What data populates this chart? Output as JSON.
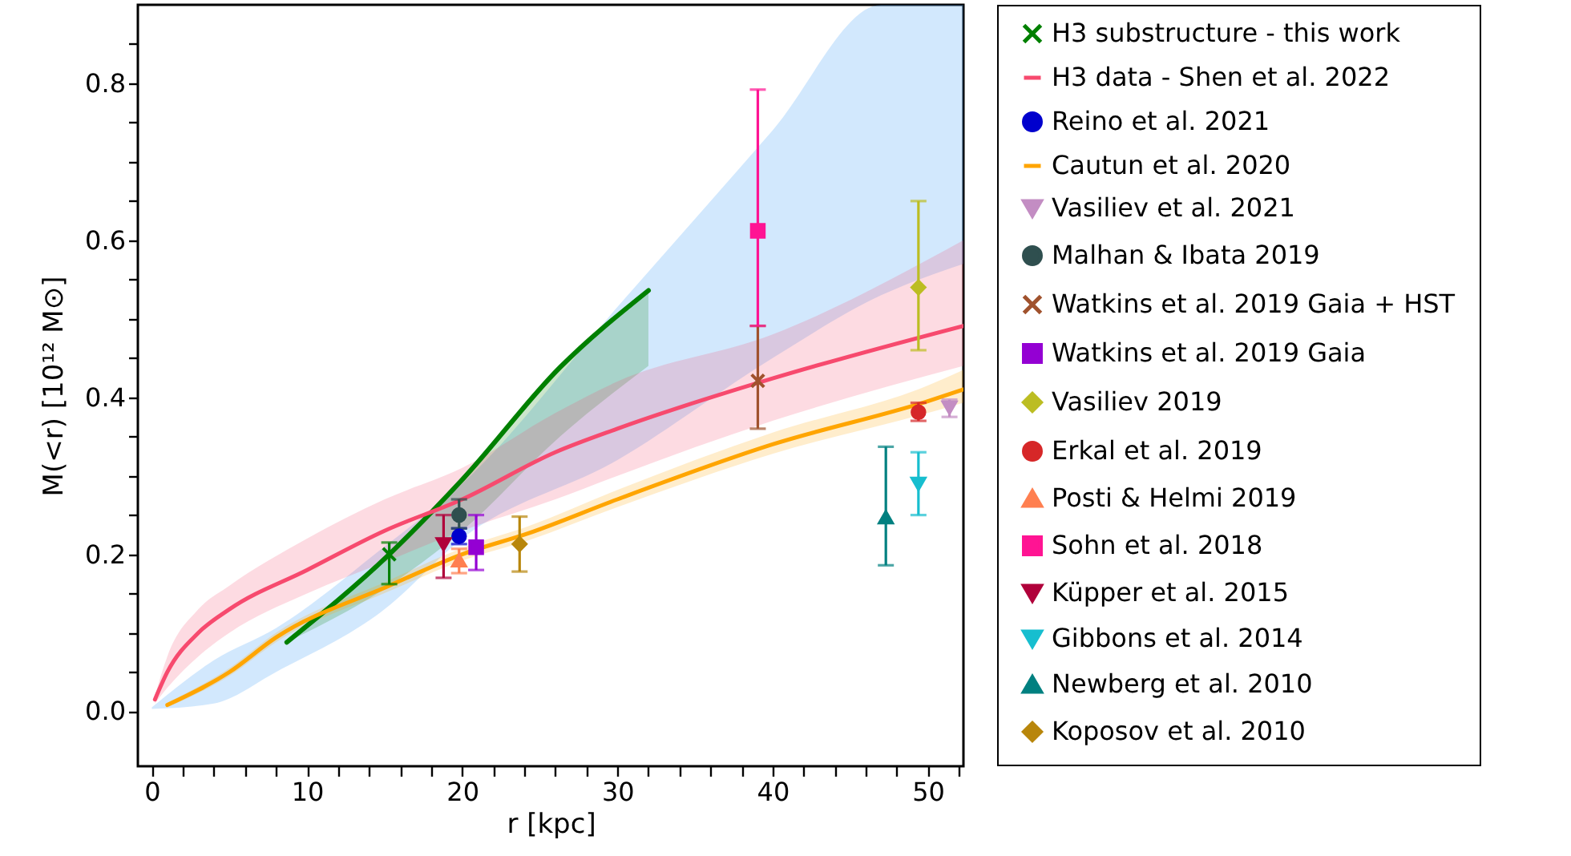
{
  "chart_data": {
    "type": "line",
    "xlabel": "r [kpc]",
    "ylabel": "M(<r) [10¹² M⊙]",
    "xlim": [
      -0.9,
      52.3
    ],
    "ylim": [
      -0.07,
      0.9
    ],
    "xticks": [
      0,
      {
        "value": 2,
        "label": null
      },
      {
        "value": 4,
        "label": null
      },
      {
        "value": 6,
        "label": null
      },
      {
        "value": 8,
        "label": null
      },
      10,
      {
        "value": 12,
        "label": null
      },
      {
        "value": 14,
        "label": null
      },
      {
        "value": 16,
        "label": null
      },
      {
        "value": 18,
        "label": null
      },
      20,
      {
        "value": 22,
        "label": null
      },
      {
        "value": 24,
        "label": null
      },
      {
        "value": 26,
        "label": null
      },
      {
        "value": 28,
        "label": null
      },
      30,
      {
        "value": 32,
        "label": null
      },
      {
        "value": 34,
        "label": null
      },
      {
        "value": 36,
        "label": null
      },
      {
        "value": 38,
        "label": null
      },
      40,
      {
        "value": 42,
        "label": null
      },
      {
        "value": 44,
        "label": null
      },
      {
        "value": 46,
        "label": null
      },
      {
        "value": 48,
        "label": null
      },
      50,
      {
        "value": 52,
        "label": null
      }
    ],
    "yticks": [
      {
        "value": 0,
        "label": "0.0"
      },
      {
        "value": 0.05,
        "label": null
      },
      {
        "value": 0.1,
        "label": null
      },
      {
        "value": 0.15,
        "label": null
      },
      {
        "value": 0.2,
        "label": "0.2"
      },
      {
        "value": 0.25,
        "label": null
      },
      {
        "value": 0.3,
        "label": null
      },
      {
        "value": 0.35,
        "label": null
      },
      {
        "value": 0.4,
        "label": "0.4"
      },
      {
        "value": 0.45,
        "label": null
      },
      {
        "value": 0.5,
        "label": null
      },
      {
        "value": 0.55,
        "label": null
      },
      {
        "value": 0.6,
        "label": "0.6"
      },
      {
        "value": 0.65,
        "label": null
      },
      {
        "value": 0.7,
        "label": null
      },
      {
        "value": 0.75,
        "label": null
      },
      {
        "value": 0.8,
        "label": "0.8"
      },
      {
        "value": 0.85,
        "label": null
      }
    ],
    "grid": false,
    "legend": "right",
    "series": [
      {
        "type": "line",
        "color": "#4da3f7",
        "x": [
          0,
          4,
          8,
          15,
          20,
          30,
          40,
          47,
          52.3
        ],
        "values": [
          null,
          null,
          null,
          null,
          null,
          null,
          null,
          null,
          null
        ],
        "upper": [
          0.005,
          0.065,
          0.106,
          0.21,
          0.29,
          0.515,
          0.74,
          0.9,
          0.9
        ],
        "lower": [
          0.003,
          0.01,
          0.05,
          0.13,
          0.22,
          0.32,
          0.45,
          0.53,
          0.57
        ]
      },
      {
        "type": "line",
        "color": "#008000",
        "x": [
          8.7,
          15.3,
          20,
          26.3,
          32
        ],
        "values": [
          0.088,
          0.2,
          0.295,
          0.438,
          0.536
        ],
        "lower": [
          0.088,
          0.16,
          0.23,
          0.35,
          0.44
        ],
        "upper": [
          0.088,
          0.2,
          0.295,
          0.438,
          0.536
        ]
      },
      {
        "type": "scatter",
        "name": "H3 substructure - this work",
        "color": "#008000",
        "marker": "cross",
        "x": [
          15.3
        ],
        "values": [
          0.2
        ],
        "errors": [
          [
            0.162,
            0.215
          ]
        ]
      },
      {
        "type": "line",
        "name": "H3 data - Shen et al. 2022",
        "color": "#f74a6e",
        "x": [
          0.2,
          1,
          3,
          5,
          10,
          15,
          20,
          26,
          30,
          40,
          52.3
        ],
        "values": [
          0.015,
          0.05,
          0.1,
          0.13,
          0.18,
          0.23,
          0.27,
          0.33,
          0.36,
          0.424,
          0.491
        ],
        "lower": [
          0.01,
          0.03,
          0.07,
          0.1,
          0.15,
          0.19,
          0.23,
          0.27,
          0.3,
          0.37,
          0.44
        ],
        "upper": [
          0.02,
          0.07,
          0.13,
          0.16,
          0.22,
          0.27,
          0.31,
          0.38,
          0.42,
          0.48,
          0.6
        ]
      },
      {
        "type": "scatter",
        "name": "Reino et al. 2021",
        "color": "#0000cd",
        "marker": "circle",
        "x": [
          19.8
        ],
        "values": [
          0.223
        ],
        "errors": [
          [
            0.213,
            0.233
          ]
        ]
      },
      {
        "type": "line",
        "name": "Cautun et al. 2020",
        "color": "#ffa500",
        "x": [
          1,
          5,
          8,
          15.3,
          20,
          24.3,
          30,
          40,
          50,
          52.3
        ],
        "values": [
          0.008,
          0.05,
          0.094,
          0.16,
          0.2,
          0.227,
          0.27,
          0.34,
          0.395,
          0.41
        ],
        "lower": [
          0.005,
          0.045,
          0.088,
          0.153,
          0.192,
          0.218,
          0.26,
          0.328,
          0.38,
          0.393
        ],
        "upper": [
          0.011,
          0.055,
          0.1,
          0.167,
          0.208,
          0.236,
          0.282,
          0.355,
          0.415,
          0.435
        ]
      },
      {
        "type": "scatter",
        "name": "Vasiliev et al. 2021",
        "color": "#c38dc3",
        "marker": "triangle-down",
        "x": [
          51.4
        ],
        "values": [
          0.387
        ],
        "errors": [
          [
            0.375,
            0.397
          ]
        ]
      },
      {
        "type": "scatter",
        "name": "Malhan & Ibata 2019",
        "color": "#2f4f4f",
        "marker": "circle",
        "x": [
          19.8
        ],
        "values": [
          0.25
        ],
        "errors": [
          [
            0.233,
            0.27
          ]
        ]
      },
      {
        "type": "scatter",
        "name": "Watkins et al.  2019 Gaia + HST",
        "color": "#a0522d",
        "marker": "cross",
        "x": [
          39.05
        ],
        "values": [
          0.421
        ],
        "errors": [
          [
            0.36,
            0.491
          ]
        ]
      },
      {
        "type": "scatter",
        "name": "Watkins et al.  2019 Gaia",
        "color": "#9400d3",
        "marker": "square",
        "x": [
          20.9
        ],
        "values": [
          0.209
        ],
        "errors": [
          [
            0.18,
            0.25
          ]
        ]
      },
      {
        "type": "scatter",
        "name": "Vasiliev 2019",
        "color": "#bcbd22",
        "marker": "diamond",
        "x": [
          49.4
        ],
        "values": [
          0.54
        ],
        "errors": [
          [
            0.46,
            0.65
          ]
        ]
      },
      {
        "type": "scatter",
        "name": "Erkal et al. 2019",
        "color": "#d62728",
        "marker": "circle",
        "x": [
          49.4
        ],
        "values": [
          0.381
        ],
        "errors": [
          [
            0.37,
            0.393
          ]
        ]
      },
      {
        "type": "scatter",
        "name": "Posti & Helmi 2019",
        "color": "#ff7f50",
        "marker": "triangle",
        "x": [
          19.8
        ],
        "values": [
          0.192
        ],
        "errors": [
          [
            0.176,
            0.207
          ]
        ]
      },
      {
        "type": "scatter",
        "name": "Sohn et al.  2018",
        "color": "#ff1493",
        "marker": "square",
        "x": [
          39.05
        ],
        "values": [
          0.612
        ],
        "errors": [
          [
            0.491,
            0.792
          ]
        ]
      },
      {
        "type": "scatter",
        "name": "Küpper et al.  2015",
        "color": "#b0003a",
        "marker": "triangle-down",
        "x": [
          18.8
        ],
        "values": [
          0.213
        ],
        "errors": [
          [
            0.17,
            0.25
          ]
        ]
      },
      {
        "type": "scatter",
        "name": "Gibbons et al.  2014",
        "color": "#17becf",
        "marker": "triangle-down",
        "x": [
          49.4
        ],
        "values": [
          0.29
        ],
        "errors": [
          [
            0.25,
            0.33
          ]
        ]
      },
      {
        "type": "scatter",
        "name": "Newberg et al. 2010",
        "color": "#008080",
        "marker": "triangle",
        "x": [
          47.3
        ],
        "values": [
          0.247
        ],
        "errors": [
          [
            0.186,
            0.337
          ]
        ]
      },
      {
        "type": "scatter",
        "name": "Koposov et al. 2010",
        "color": "#b8860b",
        "marker": "diamond",
        "x": [
          23.7
        ],
        "values": [
          0.213
        ],
        "errors": [
          [
            0.178,
            0.248
          ]
        ]
      }
    ]
  }
}
